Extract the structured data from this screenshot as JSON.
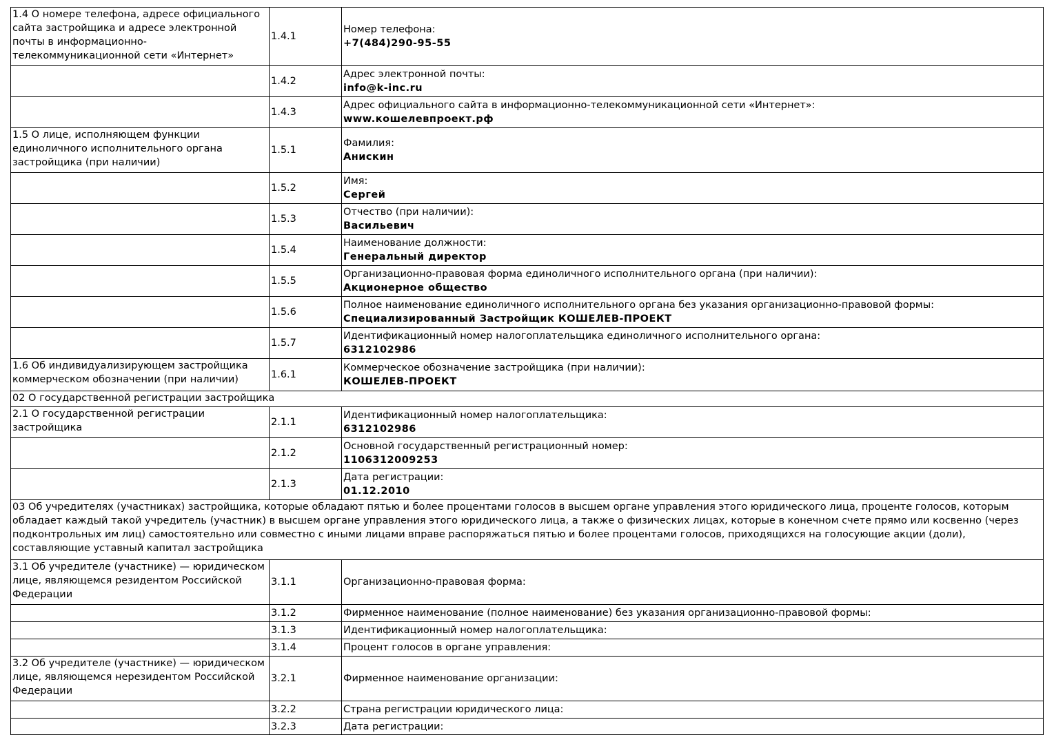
{
  "rows": [
    {
      "section": "1.4 О номере телефона, адресе официального сайта застройщика и адресе электронной почты в информационно-телекоммуникационной сети «Интернет»",
      "code": "1.4.1",
      "label": "Номер телефона:",
      "value": "+7(484)290-95-55"
    },
    {
      "section": "",
      "code": "1.4.2",
      "label": "Адрес электронной почты:",
      "value": "info@k-inc.ru"
    },
    {
      "section": "",
      "code": "1.4.3",
      "label": "Адрес официального сайта в информационно-телекоммуникационной сети «Интернет»:",
      "value": "www.кошелевпроект.рф"
    },
    {
      "section": "1.5 О лице, исполняющем функции единоличного исполнительного органа застройщика (при наличии)",
      "code": "1.5.1",
      "label": "Фамилия:",
      "value": "Анискин"
    },
    {
      "section": "",
      "code": "1.5.2",
      "label": "Имя:",
      "value": "Сергей"
    },
    {
      "section": "",
      "code": "1.5.3",
      "label": "Отчество (при наличии):",
      "value": "Васильевич"
    },
    {
      "section": "",
      "code": "1.5.4",
      "label": "Наименование должности:",
      "value": "Генеральный директор"
    },
    {
      "section": "",
      "code": "1.5.5",
      "label": "Организационно-правовая форма единоличного исполнительного органа (при наличии):",
      "value": "Акционерное общество"
    },
    {
      "section": "",
      "code": "1.5.6",
      "label": "Полное наименование единоличного исполнительного органа без указания организационно-правовой формы:",
      "value": "Специализированный Застройщик КОШЕЛЕВ-ПРОЕКТ"
    },
    {
      "section": "",
      "code": "1.5.7",
      "label": "Идентификационный номер налогоплательщика единоличного исполнительного органа:",
      "value": "6312102986"
    },
    {
      "section": "1.6 Об индивидуализирующем застройщика коммерческом обозначении (при наличии)",
      "code": "1.6.1",
      "label": "Коммерческое обозначение застройщика (при наличии):",
      "value": "КОШЕЛЕВ-ПРОЕКТ"
    },
    {
      "heading": "02 О государственной регистрации застройщика"
    },
    {
      "section": "2.1 О государственной регистрации застройщика",
      "code": "2.1.1",
      "label": "Идентификационный номер налогоплательщика:",
      "value": "6312102986"
    },
    {
      "section": "",
      "code": "2.1.2",
      "label": "Основной государственный регистрационный номер:",
      "value": "1106312009253"
    },
    {
      "section": "",
      "code": "2.1.3",
      "label": "Дата регистрации:",
      "value": "01.12.2010"
    },
    {
      "heading": "03 Об учредителях (участниках) застройщика, которые обладают пятью и более процентами голосов в высшем органе управления этого юридического лица, проценте голосов, которым обладает каждый такой учредитель (участник) в высшем органе управления этого юридического лица, а также о физических лицах, которые в конечном счете прямо или косвенно (через подконтрольных им лиц) самостоятельно или совместно с иными лицами вправе распоряжаться пятью и более процентами голосов, приходящихся на голосующие акции (доли), составляющие уставный капитал застройщика"
    },
    {
      "section": "3.1 Об учредителе (участнике) — юридическом лице, являющемся резидентом Российской Федерации",
      "code": "3.1.1",
      "label": "Организационно-правовая форма:",
      "value": ""
    },
    {
      "section": "",
      "code": "3.1.2",
      "label": "Фирменное наименование (полное наименование) без указания организационно-правовой формы:",
      "value": ""
    },
    {
      "section": "",
      "code": "3.1.3",
      "label": "Идентификационный номер налогоплательщика:",
      "value": ""
    },
    {
      "section": "",
      "code": "3.1.4",
      "label": "Процент голосов в органе управления:",
      "value": ""
    },
    {
      "section": "3.2 Об учредителе (участнике) — юридическом лице, являющемся нерезидентом Российской Федерации",
      "code": "3.2.1",
      "label": "Фирменное наименование организации:",
      "value": ""
    },
    {
      "section": "",
      "code": "3.2.2",
      "label": "Страна регистрации юридического лица:",
      "value": ""
    },
    {
      "section": "",
      "code": "3.2.3",
      "label": "Дата регистрации:",
      "value": ""
    }
  ]
}
